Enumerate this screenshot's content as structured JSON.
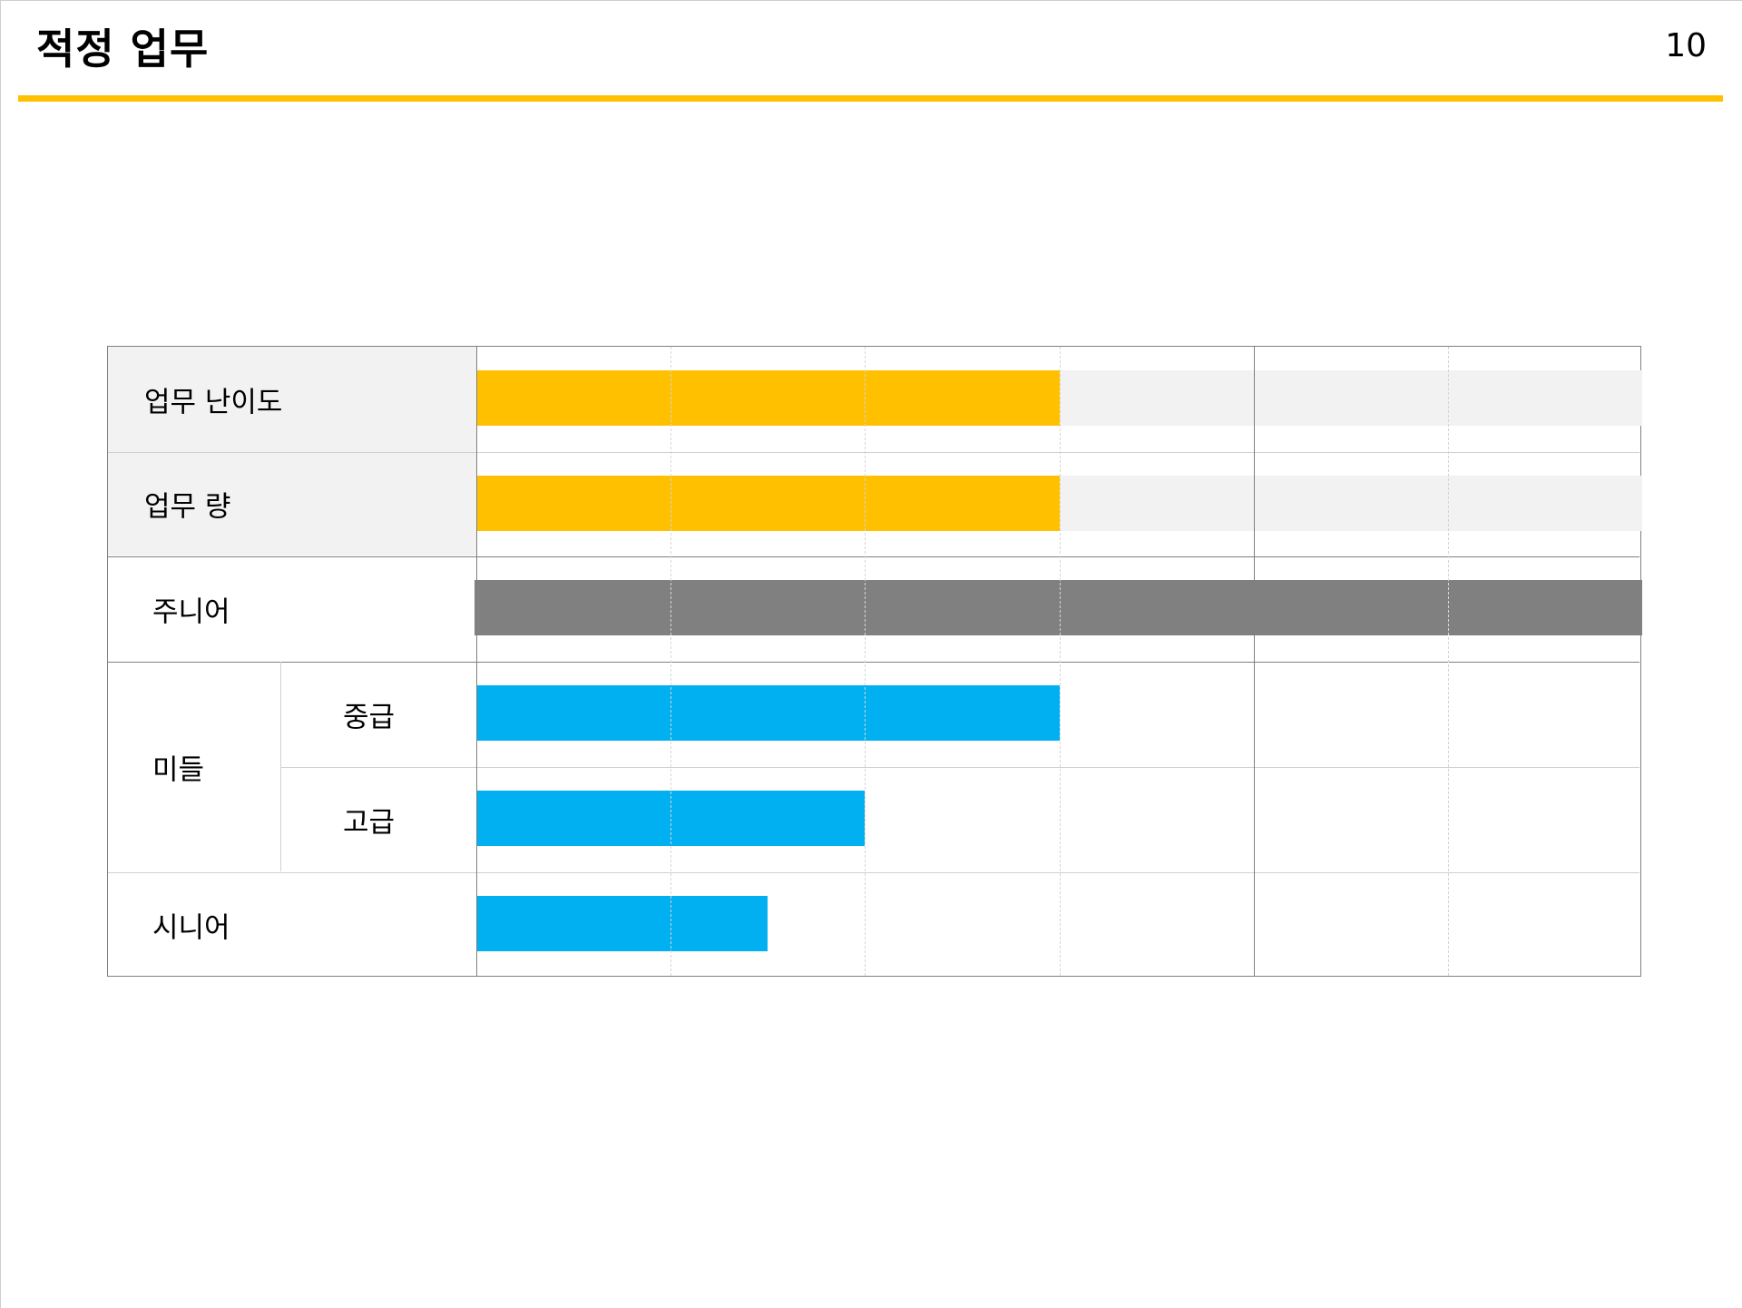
{
  "header": {
    "title": "적정 업무",
    "page_number": "10"
  },
  "colors": {
    "accent": "#ffc000",
    "junior": "#808080",
    "level": "#00b0f0",
    "track": "#f2f2f2",
    "label_bg": "#f2f2f2"
  },
  "chart_data": {
    "type": "bar",
    "orientation": "horizontal",
    "xlim": [
      0,
      1
    ],
    "grid": {
      "dashed_at": [
        0.1667,
        0.3333,
        0.5,
        0.8333
      ],
      "solid_at": [
        0.6667
      ]
    },
    "rows": [
      {
        "label": "업무 난이도",
        "value": 0.5,
        "color": "#ffc000",
        "track": true
      },
      {
        "label": "업무 량",
        "value": 0.5,
        "color": "#ffc000",
        "track": true
      },
      {
        "label": "주니어",
        "value": 1.0,
        "color": "#808080",
        "track": false
      },
      {
        "group": "미들",
        "label": "중급",
        "value": 0.5,
        "color": "#00b0f0",
        "track": false
      },
      {
        "group": "미들",
        "label": "고급",
        "value": 0.3333,
        "color": "#00b0f0",
        "track": false
      },
      {
        "label": "시니어",
        "value": 0.25,
        "color": "#00b0f0",
        "track": false
      }
    ]
  }
}
